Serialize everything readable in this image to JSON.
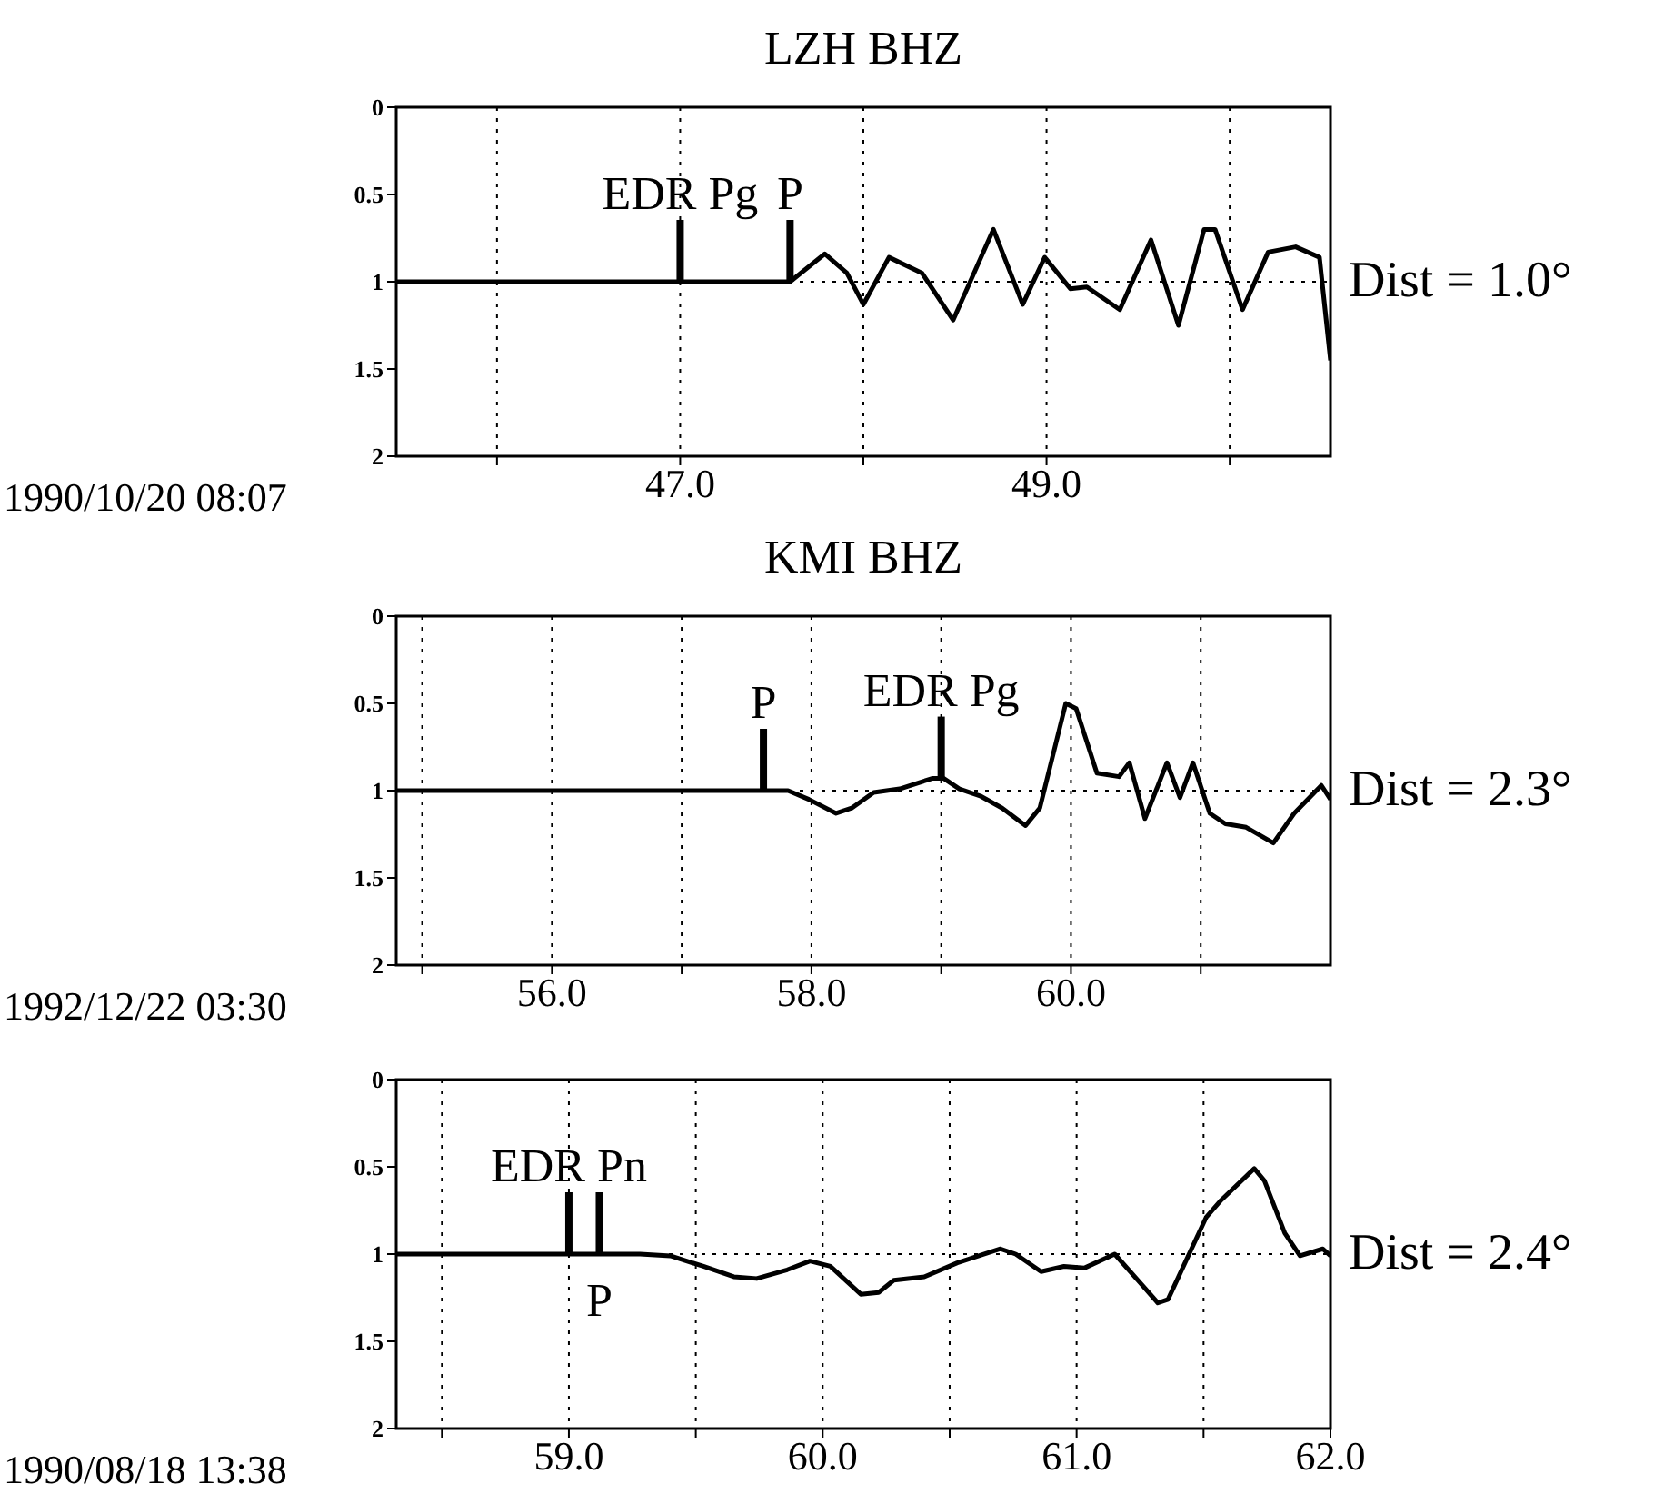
{
  "chart_data": [
    {
      "type": "line",
      "title": "LZH BHZ",
      "xlabel": "1990/10/20 08:07",
      "marker": "none",
      "grid": "x",
      "xlim": [
        45.45,
        50.55
      ],
      "xticks": [
        {
          "value": 46,
          "label": null
        },
        {
          "value": 47,
          "label": "47.0"
        },
        {
          "value": 48,
          "label": null
        },
        {
          "value": 49,
          "label": "49.0"
        },
        {
          "value": 50,
          "label": null
        }
      ],
      "ylim": [
        2,
        0
      ],
      "yticks": [
        0,
        0.5,
        1,
        1.5,
        2
      ],
      "ref_lines": [
        {
          "axis": "y",
          "value": 1,
          "line_style": "dotted"
        }
      ],
      "series": [
        {
          "color": "#000000",
          "x": [
            45.45,
            47.6,
            47.79,
            47.91,
            48.0,
            48.14,
            48.32,
            48.49,
            48.71,
            48.87,
            48.99,
            49.13,
            49.22,
            49.4,
            49.57,
            49.72,
            49.86,
            49.92,
            50.07,
            50.21,
            50.36,
            50.49,
            50.55
          ],
          "values": [
            1,
            1,
            0.84,
            0.95,
            1.13,
            0.86,
            0.95,
            1.22,
            0.7,
            1.13,
            0.86,
            1.04,
            1.03,
            1.16,
            0.76,
            1.25,
            0.7,
            0.7,
            1.16,
            0.83,
            0.8,
            0.86,
            1.45
          ]
        }
      ],
      "annotations": [
        {
          "text": "EDR Pg",
          "x": 47.0,
          "y": 1
        },
        {
          "text": "P",
          "x": 47.6,
          "y": 1
        },
        "Dist = 1.0°"
      ]
    },
    {
      "type": "line",
      "title": "KMI BHZ",
      "xlabel": "1992/12/22 03:30",
      "marker": "none",
      "grid": "x",
      "xlim": [
        54.8,
        62.0
      ],
      "xticks": [
        {
          "value": 55,
          "label": null
        },
        {
          "value": 56,
          "label": "56.0"
        },
        {
          "value": 57,
          "label": null
        },
        {
          "value": 58,
          "label": "58.0"
        },
        {
          "value": 59,
          "label": null
        },
        {
          "value": 60,
          "label": "60.0"
        },
        {
          "value": 61,
          "label": null
        }
      ],
      "ylim": [
        2,
        0
      ],
      "yticks": [
        0,
        0.5,
        1,
        1.5,
        2
      ],
      "ref_lines": [
        {
          "axis": "y",
          "value": 1,
          "line_style": "dotted"
        }
      ],
      "series": [
        {
          "color": "#000000",
          "x": [
            54.8,
            57.82,
            57.98,
            58.19,
            58.31,
            58.48,
            58.68,
            58.93,
            59.02,
            59.14,
            59.3,
            59.47,
            59.65,
            59.76,
            59.96,
            60.04,
            60.2,
            60.37,
            60.45,
            60.57,
            60.74,
            60.84,
            60.94,
            61.07,
            61.19,
            61.35,
            61.56,
            61.72,
            61.93,
            62.0
          ],
          "values": [
            1,
            1,
            1.05,
            1.13,
            1.1,
            1.01,
            0.99,
            0.93,
            0.93,
            0.99,
            1.03,
            1.1,
            1.2,
            1.1,
            0.5,
            0.53,
            0.9,
            0.92,
            0.84,
            1.16,
            0.84,
            1.04,
            0.84,
            1.13,
            1.19,
            1.21,
            1.3,
            1.13,
            0.97,
            1.05
          ]
        }
      ],
      "annotations": [
        {
          "text": "P",
          "x": 57.63,
          "y": 1
        },
        {
          "text": "EDR Pg",
          "x": 59.0,
          "y": 0.93
        },
        "Dist = 2.3°"
      ]
    },
    {
      "type": "line",
      "xlabel": "1990/08/18 13:38",
      "marker": "none",
      "grid": "x",
      "xlim": [
        58.32,
        62.0
      ],
      "xticks": [
        {
          "value": 58.5,
          "label": null
        },
        {
          "value": 59,
          "label": "59.0"
        },
        {
          "value": 59.5,
          "label": null
        },
        {
          "value": 60,
          "label": "60.0"
        },
        {
          "value": 60.5,
          "label": null
        },
        {
          "value": 61,
          "label": "61.0"
        },
        {
          "value": 61.5,
          "label": null
        },
        {
          "value": 62,
          "label": "62.0"
        }
      ],
      "ylim": [
        2,
        0
      ],
      "yticks": [
        0,
        0.5,
        1,
        1.5,
        2
      ],
      "ref_lines": [
        {
          "axis": "y",
          "value": 1,
          "line_style": "dotted"
        }
      ],
      "series": [
        {
          "color": "#000000",
          "x": [
            58.32,
            59.28,
            59.4,
            59.53,
            59.65,
            59.74,
            59.86,
            59.95,
            60.03,
            60.15,
            60.22,
            60.28,
            60.4,
            60.53,
            60.7,
            60.76,
            60.86,
            60.95,
            61.03,
            61.15,
            61.26,
            61.32,
            61.36,
            61.51,
            61.57,
            61.7,
            61.74,
            61.82,
            61.88,
            61.97,
            62.0
          ],
          "values": [
            1,
            1,
            1.01,
            1.07,
            1.13,
            1.14,
            1.09,
            1.04,
            1.07,
            1.23,
            1.22,
            1.15,
            1.13,
            1.05,
            0.97,
            1.0,
            1.1,
            1.07,
            1.08,
            1.0,
            1.18,
            1.28,
            1.26,
            0.79,
            0.69,
            0.51,
            0.58,
            0.88,
            1.01,
            0.97,
            1.01
          ]
        }
      ],
      "annotations": [
        {
          "text": "EDR Pn",
          "x": 59.0,
          "y": 1
        },
        {
          "text": "P",
          "x": 59.12,
          "y": 1
        },
        "Dist = 2.4°"
      ]
    }
  ]
}
